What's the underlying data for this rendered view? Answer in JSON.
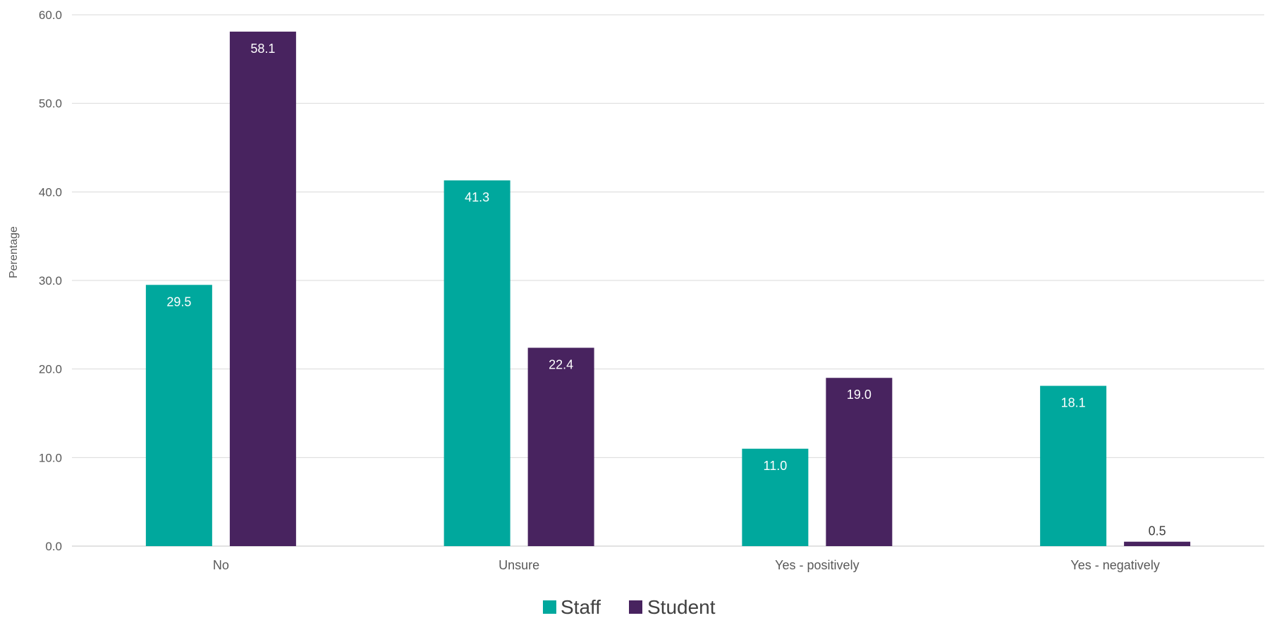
{
  "chart_data": {
    "type": "bar",
    "title": "",
    "xlabel": "",
    "ylabel": "Perentage",
    "ylim": [
      0,
      60
    ],
    "yticks": [
      "0.0",
      "10.0",
      "20.0",
      "30.0",
      "40.0",
      "50.0",
      "60.0"
    ],
    "grid": true,
    "legend_position": "bottom",
    "categories": [
      "No",
      "Unsure",
      "Yes - positively",
      "Yes - negatively"
    ],
    "series": [
      {
        "name": "Staff",
        "color": "#00a89d",
        "values": [
          29.5,
          41.3,
          11.0,
          18.1
        ],
        "labels": [
          "29.5",
          "41.3",
          "11.0",
          "18.1"
        ]
      },
      {
        "name": "Student",
        "color": "#48235f",
        "values": [
          58.1,
          22.4,
          19.0,
          0.5
        ],
        "labels": [
          "58.1",
          "22.4",
          "19.0",
          "0.5"
        ]
      }
    ]
  }
}
